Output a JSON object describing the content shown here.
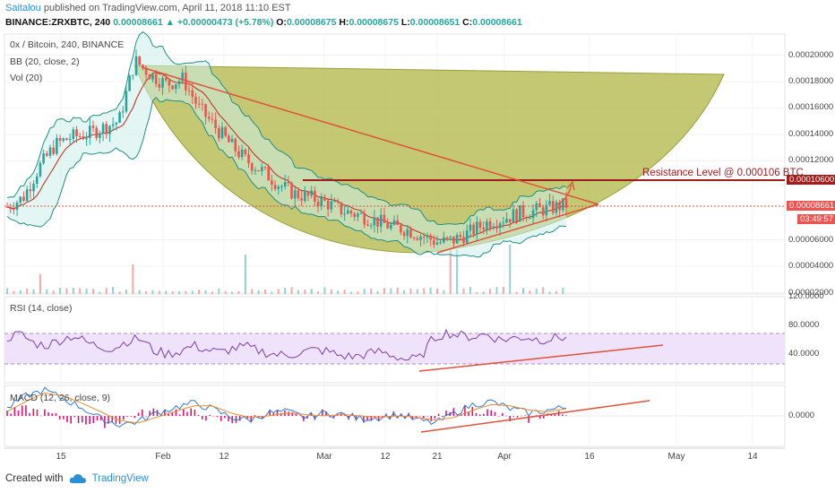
{
  "header": {
    "author": "Saitalou",
    "published_text": "published on TradingView.com, April 11, 2018 11:10 EST",
    "symbol_line": "BINANCE:ZRXBTC, 240",
    "last": "0.00008661",
    "change": "+0.00000473 (+5.78%)",
    "o_label": "O:",
    "o_value": "0.00008675",
    "h_label": "H:",
    "h_value": "0.00008675",
    "l_label": "L:",
    "l_value": "0.00008651",
    "c_label": "C:",
    "c_value": "0.00008661"
  },
  "main_pane": {
    "label_1": "0x / Bitcoin, 240, BINANCE",
    "label_2": "BB (20, close, 2)",
    "label_3": "Vol (20)",
    "annotation": "Resistance Level @ 0.000106 BTC",
    "resistance_tag": "0.00010600",
    "last_price_tag": "0.00008661",
    "countdown_tag": "03:49:57"
  },
  "rsi_pane": {
    "label": "RSI (14, close)"
  },
  "macd_pane": {
    "label": "MACD (12, 26, close, 9)"
  },
  "footer": {
    "created_with": "Created with",
    "brand": "TradingView"
  },
  "colors": {
    "up": "#26a69a",
    "down": "#ef5350",
    "bb_band": "#26a69a",
    "bb_fill": "#cdeee9",
    "bb_basis": "#c0392b",
    "cup_fill": "#b4b84a",
    "trend": "#e0523a",
    "resistance": "#a11c1c",
    "rsi": "#7b3fa8",
    "rsi_fill": "#efe2fb",
    "macd": "#2b7bd6",
    "signal": "#f08c2a",
    "hist": "#e0156f"
  },
  "chart_data": [
    {
      "type": "candlestick",
      "title": "0x / Bitcoin, 240, BINANCE",
      "indicators": [
        "BB (20, close, 2)",
        "Vol (20)"
      ],
      "x_ticks": [
        "15",
        "Feb",
        "12",
        "Mar",
        "12",
        "21",
        "Apr",
        "16",
        "May",
        "14"
      ],
      "y_ticks": [
        "0.00020000",
        "0.00018000",
        "0.00016000",
        "0.00014000",
        "0.00012000",
        "0.00006000",
        "0.00004000",
        "0.00002000"
      ],
      "ylim": [
        1.9e-05,
        0.000216
      ],
      "resistance_level": 0.000106,
      "last_price": 8.661e-05,
      "price_path": [
        [
          0,
          8.5e-05
        ],
        [
          2,
          9.2e-05
        ],
        [
          4,
          0.000115
        ],
        [
          6,
          0.000132
        ],
        [
          8,
          0.000138
        ],
        [
          10,
          0.00014
        ],
        [
          12,
          0.000145
        ],
        [
          14,
          0.00015
        ],
        [
          16,
          0.000196
        ],
        [
          18,
          0.000185
        ],
        [
          20,
          0.000178
        ],
        [
          22,
          0.000182
        ],
        [
          24,
          0.00016
        ],
        [
          26,
          0.000146
        ],
        [
          28,
          0.000132
        ],
        [
          30,
          0.00012
        ],
        [
          32,
          0.000112
        ],
        [
          34,
          0.000102
        ],
        [
          36,
          9.5e-05
        ],
        [
          38,
          9.2e-05
        ],
        [
          40,
          8.8e-05
        ],
        [
          42,
          8.2e-05
        ],
        [
          44,
          7.9e-05
        ],
        [
          46,
          7.5e-05
        ],
        [
          48,
          7e-05
        ],
        [
          50,
          6.8e-05
        ],
        [
          52,
          6.3e-05
        ],
        [
          54,
          5.8e-05
        ],
        [
          56,
          6e-05
        ],
        [
          58,
          6.6e-05
        ],
        [
          60,
          7.3e-05
        ],
        [
          62,
          7.6e-05
        ],
        [
          64,
          8e-05
        ],
        [
          66,
          8.2e-05
        ],
        [
          68,
          8.4e-05
        ],
        [
          70,
          8.66e-05
        ]
      ],
      "volume_spikes": [
        [
          4,
          0.4
        ],
        [
          16,
          0.6
        ],
        [
          30,
          0.8
        ],
        [
          56,
          0.9
        ],
        [
          63,
          1.0
        ]
      ]
    },
    {
      "type": "line",
      "title": "RSI (14, close)",
      "y_ticks": [
        "120.0000",
        "80.0000",
        "40.0000"
      ],
      "ylim": [
        0,
        120
      ],
      "bands": [
        70,
        30
      ],
      "values": [
        63,
        68,
        55,
        52,
        60,
        66,
        56,
        50,
        48,
        58,
        62,
        45,
        40,
        44,
        52,
        46,
        42,
        48,
        50,
        44,
        40,
        38,
        42,
        46,
        44,
        38,
        36,
        40,
        44,
        38,
        32,
        34,
        62,
        70,
        66,
        64,
        68,
        60,
        62,
        64,
        60,
        62,
        64
      ]
    },
    {
      "type": "line",
      "title": "MACD (12, 26, close, 9)",
      "y_ticks": [
        "0.0000"
      ],
      "series": [
        {
          "name": "MACD",
          "values": [
            0.5,
            1.4,
            1.8,
            1.2,
            0.6,
            -0.2,
            -0.6,
            -0.4,
            0.2,
            0.6,
            0.9,
            0.5,
            -0.1,
            -0.3,
            0.2,
            0.3,
            -0.1,
            0.2,
            0.1,
            -0.2,
            -0.1,
            0.1,
            -0.3,
            -0.5,
            0.2,
            0.8,
            1.0,
            0.5,
            0.2,
            0.4,
            0.6
          ]
        },
        {
          "name": "Signal",
          "values": [
            0.3,
            1.0,
            1.6,
            1.4,
            0.9,
            0.3,
            -0.3,
            -0.5,
            -0.1,
            0.3,
            0.7,
            0.7,
            0.2,
            -0.1,
            0.0,
            0.2,
            0.1,
            0.0,
            0.1,
            0.0,
            -0.1,
            0.0,
            -0.1,
            -0.3,
            -0.1,
            0.4,
            0.8,
            0.7,
            0.4,
            0.3,
            0.5
          ]
        }
      ]
    }
  ]
}
